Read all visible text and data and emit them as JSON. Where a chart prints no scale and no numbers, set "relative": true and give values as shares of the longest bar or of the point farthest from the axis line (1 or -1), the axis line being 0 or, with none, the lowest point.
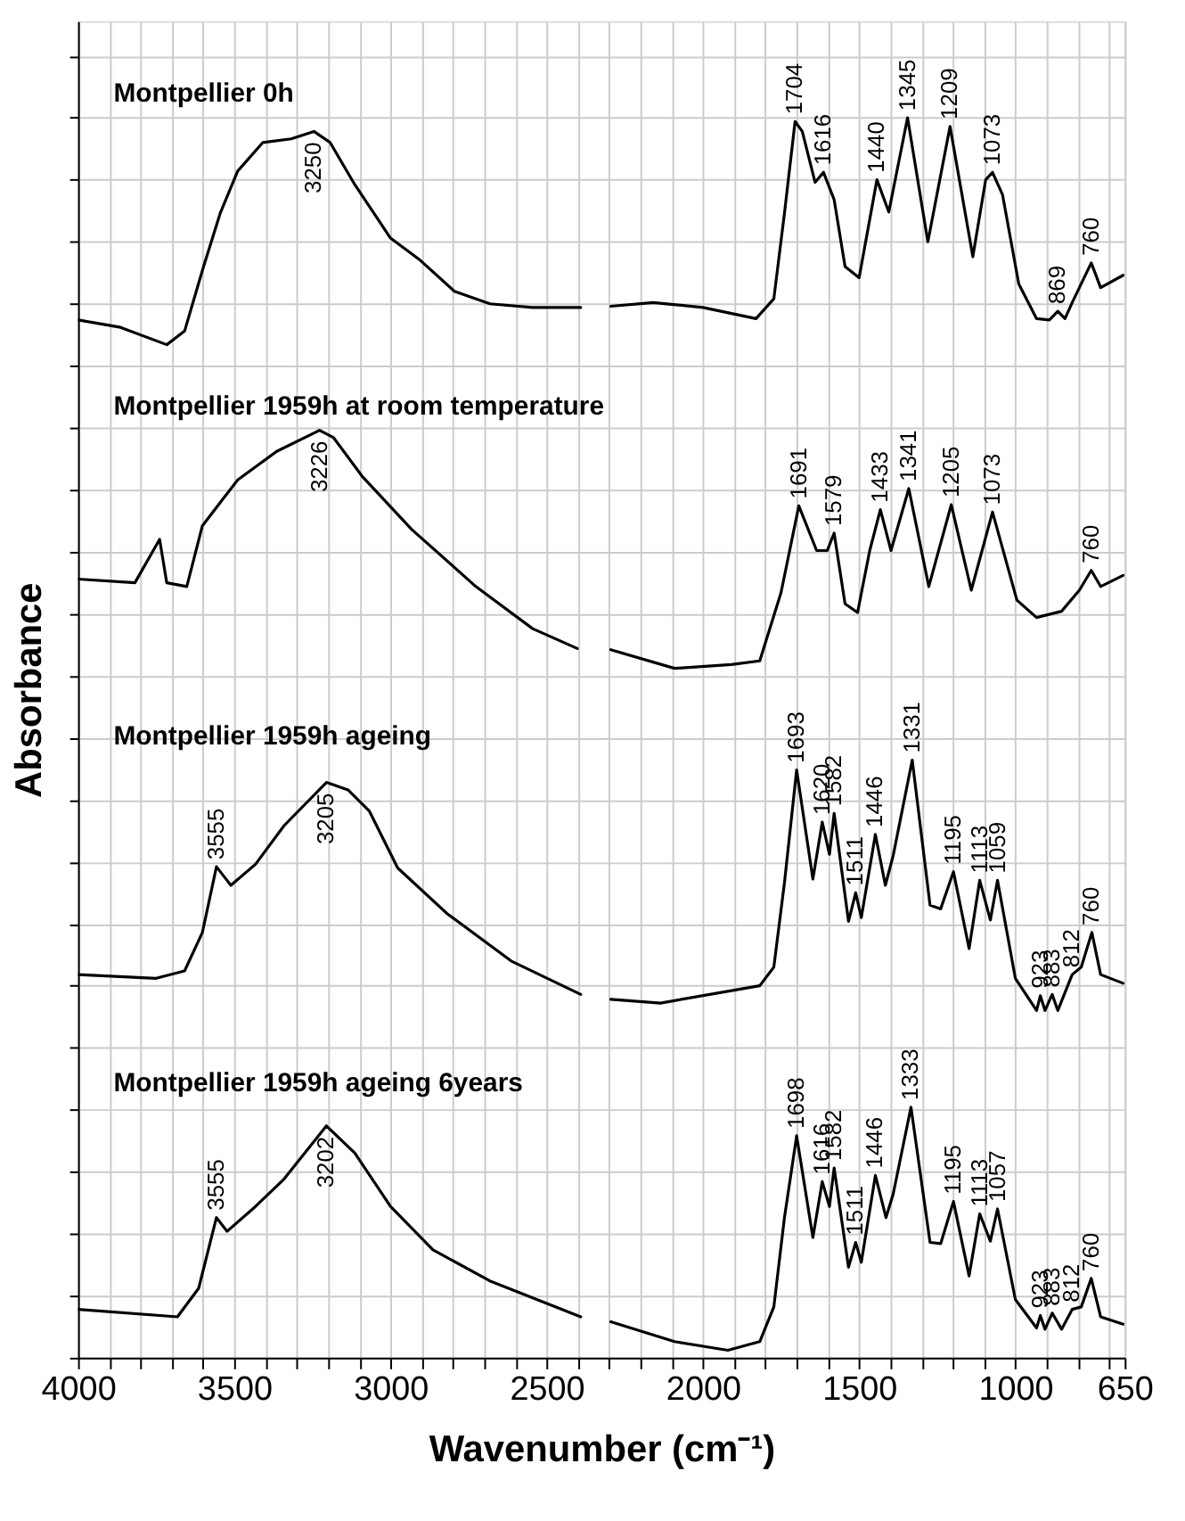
{
  "chart_data": {
    "type": "line",
    "relative": true,
    "xlabel": "Wavenumber (cm⁻¹)",
    "ylabel": "Absorbance",
    "grid": true,
    "legend": "left",
    "tick_labels": "x",
    "line_style": "solid",
    "marker": "none",
    "xlim": [
      4000,
      650
    ],
    "xticks": [
      4000,
      {
        "value": 3900,
        "label": null
      },
      {
        "value": 3800,
        "label": null
      },
      {
        "value": 3700,
        "label": null
      },
      {
        "value": 3600,
        "label": null
      },
      3500,
      {
        "value": 3400,
        "label": null
      },
      {
        "value": 3300,
        "label": null
      },
      {
        "value": 3200,
        "label": null
      },
      {
        "value": 3100,
        "label": null
      },
      3000,
      {
        "value": 2900,
        "label": null
      },
      {
        "value": 2800,
        "label": null
      },
      {
        "value": 2700,
        "label": null
      },
      {
        "value": 2600,
        "label": null
      },
      2500,
      {
        "value": 2400,
        "label": null
      },
      {
        "value": 2300,
        "label": null
      },
      {
        "value": 2200,
        "label": null
      },
      {
        "value": 2100,
        "label": null
      },
      2000,
      {
        "value": 1900,
        "label": null
      },
      {
        "value": 1800,
        "label": null
      },
      {
        "value": 1700,
        "label": null
      },
      {
        "value": 1600,
        "label": null
      },
      1500,
      {
        "value": 1400,
        "label": null
      },
      {
        "value": 1300,
        "label": null
      },
      {
        "value": 1200,
        "label": null
      },
      {
        "value": 1100,
        "label": null
      },
      1000,
      {
        "value": 900,
        "label": null
      },
      {
        "value": 800,
        "label": null
      },
      {
        "value": 700,
        "label": null
      },
      650
    ],
    "series": [
      {
        "name": "Montpellier 0h",
        "color": "#000000",
        "x": [
          4000,
          3864,
          3716,
          3659,
          3602,
          3545,
          3489,
          3409,
          3318,
          3245,
          3193,
          3114,
          3000,
          2909,
          2795,
          2682,
          2545,
          2391,
          2340,
          2295,
          2159,
          2000,
          1830,
          1773,
          1739,
          1705,
          1682,
          1641,
          1614,
          1580,
          1545,
          1500,
          1443,
          1405,
          1345,
          1280,
          1209,
          1136,
          1095,
          1073,
          1041,
          989,
          932,
          891,
          864,
          841,
          818,
          757,
          727,
          655
        ],
        "values": [
          0.837,
          0.831,
          0.817,
          0.828,
          0.877,
          0.923,
          0.957,
          0.98,
          0.983,
          0.989,
          0.98,
          0.946,
          0.903,
          0.886,
          0.86,
          0.85,
          0.847,
          0.847,
          null,
          0.848,
          0.851,
          0.847,
          0.838,
          0.854,
          0.923,
          0.997,
          0.989,
          0.948,
          0.956,
          0.934,
          0.88,
          0.871,
          0.95,
          0.924,
          1.0,
          0.9,
          0.993,
          0.888,
          0.95,
          0.956,
          0.938,
          0.866,
          0.838,
          0.837,
          0.844,
          0.838,
          0.851,
          0.883,
          0.863,
          0.873
        ]
      },
      {
        "name": "Montpellier 1959h at room temperature",
        "color": "#000000",
        "x": [
          4000,
          3818,
          3739,
          3716,
          3652,
          3602,
          3489,
          3364,
          3227,
          3182,
          3091,
          2932,
          2727,
          2545,
          2402,
          2340,
          2295,
          2091,
          1909,
          1818,
          1750,
          1693,
          1636,
          1602,
          1580,
          1545,
          1505,
          1466,
          1432,
          1398,
          1341,
          1277,
          1205,
          1141,
          1073,
          995,
          932,
          852,
          795,
          757,
          727,
          655
        ],
        "values": [
          0.628,
          0.625,
          0.66,
          0.625,
          0.622,
          0.671,
          0.708,
          0.731,
          0.748,
          0.742,
          0.711,
          0.668,
          0.622,
          0.588,
          0.572,
          null,
          0.571,
          0.556,
          0.559,
          0.562,
          0.617,
          0.687,
          0.651,
          0.651,
          0.665,
          0.608,
          0.601,
          0.651,
          0.684,
          0.651,
          0.701,
          0.622,
          0.688,
          0.619,
          0.682,
          0.611,
          0.597,
          0.602,
          0.619,
          0.635,
          0.622,
          0.631
        ]
      },
      {
        "name": "Montpellier 1959h ageing",
        "color": "#000000",
        "x": [
          4000,
          3750,
          3659,
          3602,
          3557,
          3511,
          3432,
          3341,
          3205,
          3136,
          3068,
          2977,
          2818,
          2614,
          2391,
          2340,
          2295,
          2136,
          1818,
          1773,
          1739,
          1700,
          1648,
          1618,
          1595,
          1580,
          1534,
          1511,
          1493,
          1448,
          1416,
          1391,
          1330,
          1273,
          1239,
          1198,
          1148,
          1114,
          1080,
          1057,
          1000,
          932,
          920,
          905,
          882,
          864,
          818,
          789,
          755,
          727,
          655
        ],
        "values": [
          0.309,
          0.306,
          0.312,
          0.343,
          0.396,
          0.381,
          0.398,
          0.429,
          0.464,
          0.458,
          0.441,
          0.395,
          0.358,
          0.32,
          0.293,
          null,
          0.289,
          0.286,
          0.3,
          0.315,
          0.383,
          0.474,
          0.386,
          0.432,
          0.406,
          0.439,
          0.352,
          0.375,
          0.355,
          0.422,
          0.381,
          0.405,
          0.482,
          0.365,
          0.362,
          0.392,
          0.33,
          0.385,
          0.353,
          0.385,
          0.306,
          0.28,
          0.292,
          0.28,
          0.293,
          0.28,
          0.309,
          0.315,
          0.343,
          0.309,
          0.302
        ]
      },
      {
        "name": "Montpellier 1959h ageing 6years",
        "color": "#000000",
        "x": [
          4000,
          3682,
          3614,
          3557,
          3523,
          3432,
          3341,
          3205,
          3114,
          3000,
          2864,
          2682,
          2391,
          2340,
          2295,
          2091,
          1920,
          1818,
          1773,
          1739,
          1700,
          1648,
          1618,
          1595,
          1580,
          1534,
          1511,
          1493,
          1448,
          1414,
          1391,
          1334,
          1273,
          1239,
          1198,
          1148,
          1114,
          1080,
          1057,
          1000,
          932,
          920,
          905,
          882,
          852,
          818,
          789,
          757,
          727,
          655
        ],
        "values": [
          0.039,
          0.033,
          0.056,
          0.113,
          0.102,
          0.122,
          0.144,
          0.187,
          0.165,
          0.122,
          0.087,
          0.062,
          0.033,
          null,
          0.029,
          0.013,
          0.006,
          0.013,
          0.041,
          0.113,
          0.179,
          0.097,
          0.142,
          0.122,
          0.153,
          0.073,
          0.093,
          0.077,
          0.147,
          0.113,
          0.132,
          0.202,
          0.093,
          0.092,
          0.126,
          0.066,
          0.116,
          0.094,
          0.12,
          0.047,
          0.024,
          0.034,
          0.023,
          0.036,
          0.023,
          0.039,
          0.041,
          0.064,
          0.033,
          0.027
        ]
      }
    ],
    "annotations": [
      {
        "text": "3250",
        "x": 3245,
        "y": 0.989
      },
      {
        "text": "1704",
        "x": 1705,
        "y": 0.997
      },
      {
        "text": "1616",
        "x": 1614,
        "y": 0.956
      },
      {
        "text": "1440",
        "x": 1443,
        "y": 0.95
      },
      {
        "text": "1345",
        "x": 1345,
        "y": 1.0
      },
      {
        "text": "1209",
        "x": 1209,
        "y": 0.993
      },
      {
        "text": "1073",
        "x": 1073,
        "y": 0.956
      },
      {
        "text": "869",
        "x": 864,
        "y": 0.844
      },
      {
        "text": "760",
        "x": 757,
        "y": 0.883
      },
      {
        "text": "3226",
        "x": 3227,
        "y": 0.748
      },
      {
        "text": "1691",
        "x": 1693,
        "y": 0.687
      },
      {
        "text": "1579",
        "x": 1580,
        "y": 0.665
      },
      {
        "text": "1433",
        "x": 1432,
        "y": 0.684
      },
      {
        "text": "1341",
        "x": 1341,
        "y": 0.701
      },
      {
        "text": "1205",
        "x": 1205,
        "y": 0.688
      },
      {
        "text": "1073",
        "x": 1073,
        "y": 0.682
      },
      {
        "text": "760",
        "x": 757,
        "y": 0.635
      },
      {
        "text": "3555",
        "x": 3557,
        "y": 0.396
      },
      {
        "text": "3205",
        "x": 3205,
        "y": 0.464
      },
      {
        "text": "1693",
        "x": 1700,
        "y": 0.474
      },
      {
        "text": "1620",
        "x": 1618,
        "y": 0.432
      },
      {
        "text": "1582",
        "x": 1580,
        "y": 0.439
      },
      {
        "text": "1511",
        "x": 1511,
        "y": 0.375
      },
      {
        "text": "1446",
        "x": 1448,
        "y": 0.422
      },
      {
        "text": "1331",
        "x": 1330,
        "y": 0.482
      },
      {
        "text": "1195",
        "x": 1198,
        "y": 0.392
      },
      {
        "text": "1113",
        "x": 1114,
        "y": 0.385
      },
      {
        "text": "1059",
        "x": 1057,
        "y": 0.385
      },
      {
        "text": "923",
        "x": 920,
        "y": 0.292
      },
      {
        "text": "883",
        "x": 882,
        "y": 0.293
      },
      {
        "text": "812",
        "x": 818,
        "y": 0.309
      },
      {
        "text": "760",
        "x": 755,
        "y": 0.343
      },
      {
        "text": "3555",
        "x": 3557,
        "y": 0.113
      },
      {
        "text": "3202",
        "x": 3205,
        "y": 0.187
      },
      {
        "text": "1698",
        "x": 1700,
        "y": 0.179
      },
      {
        "text": "1616",
        "x": 1618,
        "y": 0.142
      },
      {
        "text": "1582",
        "x": 1580,
        "y": 0.153
      },
      {
        "text": "1511",
        "x": 1511,
        "y": 0.093
      },
      {
        "text": "1446",
        "x": 1448,
        "y": 0.147
      },
      {
        "text": "1333",
        "x": 1334,
        "y": 0.202
      },
      {
        "text": "1195",
        "x": 1198,
        "y": 0.126
      },
      {
        "text": "1113",
        "x": 1114,
        "y": 0.116
      },
      {
        "text": "1057",
        "x": 1057,
        "y": 0.12
      },
      {
        "text": "923",
        "x": 920,
        "y": 0.034
      },
      {
        "text": "883",
        "x": 882,
        "y": 0.036
      },
      {
        "text": "812",
        "x": 818,
        "y": 0.039
      },
      {
        "text": "760",
        "x": 757,
        "y": 0.064
      }
    ]
  }
}
